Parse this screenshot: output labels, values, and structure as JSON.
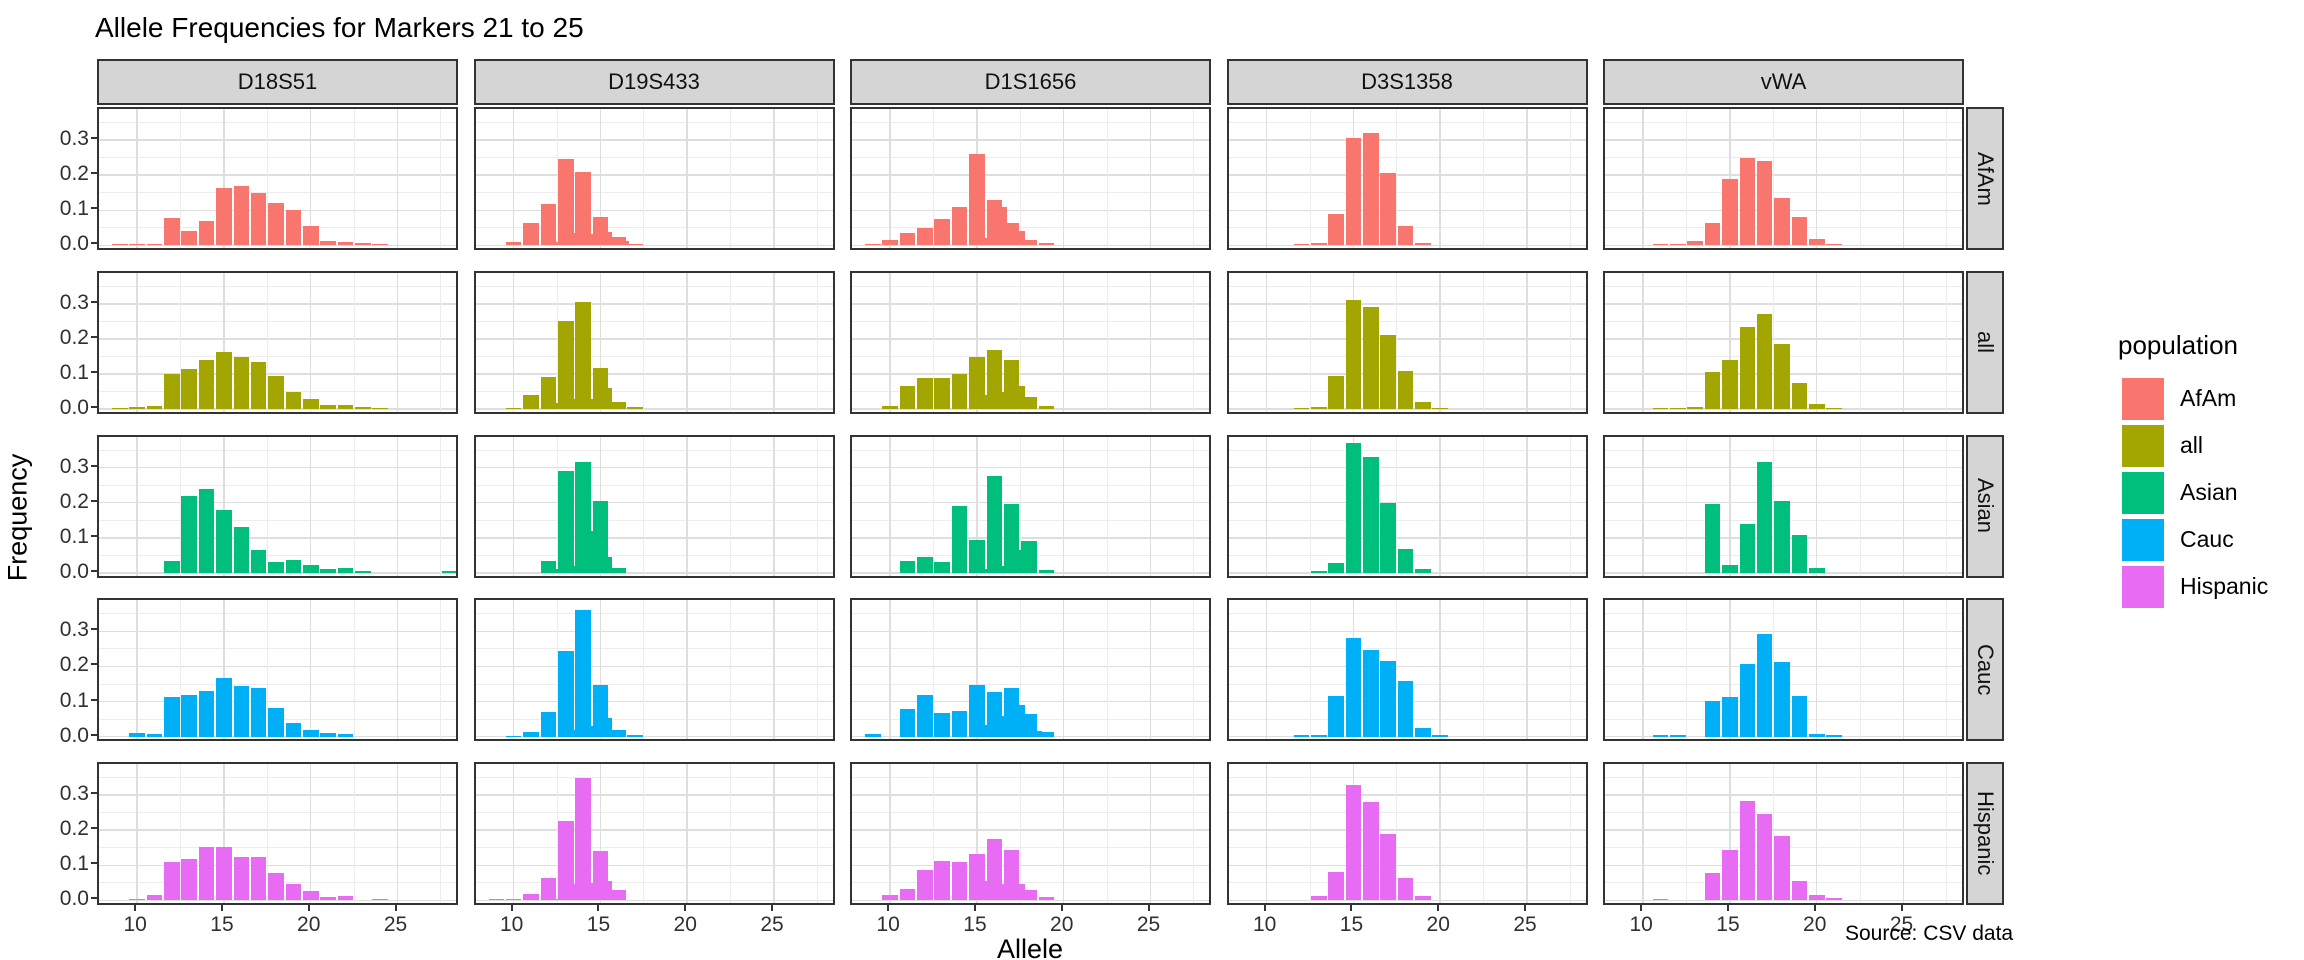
{
  "footer": {
    "source": "Source: CSV data"
  },
  "chart_data": {
    "type": "bar",
    "title": "Allele Frequencies for Markers 21 to 25",
    "xlabel": "Allele",
    "ylabel": "Frequency",
    "facet_cols": [
      "D18S51",
      "D19S433",
      "D1S1656",
      "D3S1358",
      "vWA"
    ],
    "facet_rows": [
      "AfAm",
      "all",
      "Asian",
      "Cauc",
      "Hispanic"
    ],
    "x_ticks": [
      10,
      15,
      20,
      25
    ],
    "x_tick_labels": [
      "10",
      "15",
      "20",
      "25"
    ],
    "y_ticks": [
      0.0,
      0.1,
      0.2,
      0.3
    ],
    "y_tick_labels": [
      "0.0",
      "0.1",
      "0.2",
      "0.3"
    ],
    "xlim": [
      7.8,
      28.6
    ],
    "ylim": [
      -0.019,
      0.389
    ],
    "grid": "on",
    "legend": {
      "title": "population",
      "position": "right",
      "entries": [
        {
          "label": "AfAm",
          "color": "#F8766D"
        },
        {
          "label": "all",
          "color": "#A3A500"
        },
        {
          "label": "Asian",
          "color": "#00BF7D"
        },
        {
          "label": "Cauc",
          "color": "#00B0F6"
        },
        {
          "label": "Hispanic",
          "color": "#E76BF3"
        }
      ]
    },
    "series_colors": {
      "AfAm": "#F8766D",
      "all": "#A3A500",
      "Asian": "#00BF7D",
      "Cauc": "#00B0F6",
      "Hispanic": "#E76BF3"
    },
    "panels": [
      {
        "population": "AfAm",
        "marker": "D18S51",
        "alleles": [
          9,
          10,
          11,
          12,
          13,
          14,
          15,
          16,
          17,
          18,
          19,
          20,
          21,
          22,
          23,
          24
        ],
        "freqs": [
          0.004,
          0.005,
          0.004,
          0.078,
          0.042,
          0.07,
          0.165,
          0.17,
          0.15,
          0.12,
          0.1,
          0.055,
          0.012,
          0.009,
          0.006,
          0.005
        ]
      },
      {
        "population": "AfAm",
        "marker": "D19S433",
        "alleles": [
          10,
          11,
          12,
          12.2,
          13,
          13.2,
          14,
          14.2,
          15,
          15.2,
          16,
          16.2,
          17
        ],
        "freqs": [
          0.01,
          0.065,
          0.118,
          0.01,
          0.245,
          0.036,
          0.21,
          0.031,
          0.082,
          0.037,
          0.024,
          0.011,
          0.005
        ]
      },
      {
        "population": "AfAm",
        "marker": "D1S1656",
        "alleles": [
          9,
          10,
          11,
          12,
          13,
          14,
          15,
          15.3,
          16,
          16.3,
          17,
          17.3,
          18,
          19
        ],
        "freqs": [
          0.005,
          0.015,
          0.035,
          0.05,
          0.075,
          0.11,
          0.26,
          0.02,
          0.13,
          0.11,
          0.065,
          0.04,
          0.015,
          0.008
        ]
      },
      {
        "population": "AfAm",
        "marker": "D3S1358",
        "alleles": [
          12,
          13,
          14,
          15,
          16,
          17,
          18,
          19
        ],
        "freqs": [
          0.005,
          0.008,
          0.09,
          0.305,
          0.32,
          0.205,
          0.055,
          0.008
        ]
      },
      {
        "population": "AfAm",
        "marker": "vWA",
        "alleles": [
          11,
          12,
          13,
          14,
          15,
          16,
          17,
          18,
          19,
          20,
          21
        ],
        "freqs": [
          0.003,
          0.003,
          0.012,
          0.065,
          0.19,
          0.25,
          0.24,
          0.135,
          0.08,
          0.018,
          0.004
        ]
      },
      {
        "population": "all",
        "marker": "D18S51",
        "alleles": [
          9,
          10,
          11,
          12,
          13,
          14,
          15,
          16,
          17,
          18,
          19,
          20,
          21,
          22,
          23,
          24
        ],
        "freqs": [
          0.003,
          0.006,
          0.008,
          0.1,
          0.115,
          0.14,
          0.163,
          0.148,
          0.135,
          0.095,
          0.05,
          0.028,
          0.012,
          0.012,
          0.005,
          0.003
        ]
      },
      {
        "population": "all",
        "marker": "D19S433",
        "alleles": [
          10,
          11,
          12,
          12.2,
          13,
          13.2,
          14,
          14.2,
          15,
          15.2,
          16,
          17
        ],
        "freqs": [
          0.004,
          0.04,
          0.092,
          0.018,
          0.25,
          0.03,
          0.305,
          0.03,
          0.118,
          0.06,
          0.02,
          0.005
        ]
      },
      {
        "population": "all",
        "marker": "D1S1656",
        "alleles": [
          10,
          11,
          12,
          13,
          14,
          15,
          15.3,
          16,
          16.3,
          17,
          17.3,
          18,
          19
        ],
        "freqs": [
          0.01,
          0.065,
          0.09,
          0.09,
          0.1,
          0.15,
          0.04,
          0.17,
          0.05,
          0.14,
          0.065,
          0.035,
          0.01
        ]
      },
      {
        "population": "all",
        "marker": "D3S1358",
        "alleles": [
          12,
          13,
          14,
          15,
          16,
          17,
          18,
          19,
          20
        ],
        "freqs": [
          0.003,
          0.005,
          0.095,
          0.31,
          0.29,
          0.21,
          0.11,
          0.02,
          0.003
        ]
      },
      {
        "population": "all",
        "marker": "vWA",
        "alleles": [
          11,
          12,
          13,
          14,
          15,
          16,
          17,
          18,
          19,
          20,
          21
        ],
        "freqs": [
          0.002,
          0.002,
          0.006,
          0.105,
          0.14,
          0.235,
          0.27,
          0.185,
          0.075,
          0.015,
          0.003
        ]
      },
      {
        "population": "Asian",
        "marker": "D18S51",
        "alleles": [
          12,
          13,
          14,
          15,
          16,
          17,
          18,
          19,
          20,
          21,
          22,
          23,
          28
        ],
        "freqs": [
          0.035,
          0.22,
          0.24,
          0.18,
          0.13,
          0.065,
          0.031,
          0.037,
          0.021,
          0.012,
          0.015,
          0.005,
          0.006
        ]
      },
      {
        "population": "Asian",
        "marker": "D19S433",
        "alleles": [
          12,
          12.2,
          13,
          13.2,
          14,
          14.2,
          15,
          15.2,
          16
        ],
        "freqs": [
          0.035,
          0.01,
          0.29,
          0.02,
          0.315,
          0.12,
          0.205,
          0.045,
          0.015
        ]
      },
      {
        "population": "Asian",
        "marker": "D1S1656",
        "alleles": [
          11,
          12,
          13,
          14,
          15,
          15.3,
          16,
          16.3,
          17,
          17.3,
          18,
          19
        ],
        "freqs": [
          0.035,
          0.045,
          0.03,
          0.19,
          0.095,
          0.01,
          0.275,
          0.02,
          0.195,
          0.065,
          0.09,
          0.008
        ]
      },
      {
        "population": "Asian",
        "marker": "D3S1358",
        "alleles": [
          13,
          14,
          15,
          16,
          17,
          18,
          19
        ],
        "freqs": [
          0.005,
          0.027,
          0.37,
          0.33,
          0.2,
          0.067,
          0.012
        ]
      },
      {
        "population": "Asian",
        "marker": "vWA",
        "alleles": [
          14,
          15,
          16,
          17,
          18,
          19,
          20
        ],
        "freqs": [
          0.195,
          0.022,
          0.14,
          0.315,
          0.205,
          0.107,
          0.015
        ]
      },
      {
        "population": "Cauc",
        "marker": "D18S51",
        "alleles": [
          10,
          11,
          12,
          13,
          14,
          15,
          16,
          17,
          18,
          19,
          20,
          21,
          22
        ],
        "freqs": [
          0.009,
          0.008,
          0.114,
          0.12,
          0.13,
          0.168,
          0.145,
          0.138,
          0.081,
          0.04,
          0.018,
          0.01,
          0.008
        ]
      },
      {
        "population": "Cauc",
        "marker": "D19S433",
        "alleles": [
          10,
          11,
          12,
          13,
          13.2,
          14,
          14.2,
          15,
          15.2,
          16,
          17
        ],
        "freqs": [
          0.003,
          0.012,
          0.069,
          0.245,
          0.02,
          0.36,
          0.029,
          0.147,
          0.054,
          0.02,
          0.004
        ]
      },
      {
        "population": "Cauc",
        "marker": "D1S1656",
        "alleles": [
          9,
          11,
          12,
          13,
          14,
          15,
          15.3,
          16,
          16.3,
          17,
          17.3,
          18,
          18.3,
          19
        ],
        "freqs": [
          0.008,
          0.08,
          0.12,
          0.067,
          0.074,
          0.148,
          0.033,
          0.127,
          0.06,
          0.138,
          0.09,
          0.065,
          0.015,
          0.012
        ]
      },
      {
        "population": "Cauc",
        "marker": "D3S1358",
        "alleles": [
          12,
          13,
          14,
          15,
          16,
          17,
          18,
          19,
          20
        ],
        "freqs": [
          0.004,
          0.005,
          0.116,
          0.28,
          0.247,
          0.217,
          0.158,
          0.025,
          0.005
        ]
      },
      {
        "population": "Cauc",
        "marker": "vWA",
        "alleles": [
          11,
          12,
          14,
          15,
          16,
          17,
          18,
          19,
          20,
          21
        ],
        "freqs": [
          0.004,
          0.005,
          0.101,
          0.114,
          0.208,
          0.292,
          0.212,
          0.116,
          0.008,
          0.004
        ]
      },
      {
        "population": "Hispanic",
        "marker": "D18S51",
        "alleles": [
          10,
          11,
          12,
          13,
          14,
          15,
          16,
          17,
          18,
          19,
          20,
          21,
          22,
          24
        ],
        "freqs": [
          0.005,
          0.015,
          0.11,
          0.118,
          0.153,
          0.153,
          0.123,
          0.123,
          0.079,
          0.047,
          0.028,
          0.01,
          0.012,
          0.004
        ]
      },
      {
        "population": "Hispanic",
        "marker": "D19S433",
        "alleles": [
          9,
          10,
          11,
          12,
          12.2,
          13,
          13.2,
          14,
          14.2,
          15,
          15.2,
          16
        ],
        "freqs": [
          0.004,
          0.004,
          0.018,
          0.065,
          0.005,
          0.225,
          0.048,
          0.35,
          0.05,
          0.14,
          0.055,
          0.03
        ]
      },
      {
        "population": "Hispanic",
        "marker": "D1S1656",
        "alleles": [
          10,
          11,
          12,
          13,
          14,
          15,
          15.3,
          16,
          16.3,
          17,
          17.3,
          18,
          19
        ],
        "freqs": [
          0.015,
          0.032,
          0.087,
          0.113,
          0.11,
          0.133,
          0.054,
          0.175,
          0.047,
          0.143,
          0.047,
          0.03,
          0.01
        ]
      },
      {
        "population": "Hispanic",
        "marker": "D3S1358",
        "alleles": [
          13,
          14,
          15,
          16,
          17,
          18,
          19
        ],
        "freqs": [
          0.012,
          0.08,
          0.33,
          0.28,
          0.19,
          0.065,
          0.012
        ]
      },
      {
        "population": "Hispanic",
        "marker": "vWA",
        "alleles": [
          11,
          14,
          15,
          16,
          17,
          18,
          19,
          20,
          21
        ],
        "freqs": [
          0.005,
          0.079,
          0.144,
          0.283,
          0.245,
          0.183,
          0.054,
          0.015,
          0.006
        ]
      }
    ]
  }
}
